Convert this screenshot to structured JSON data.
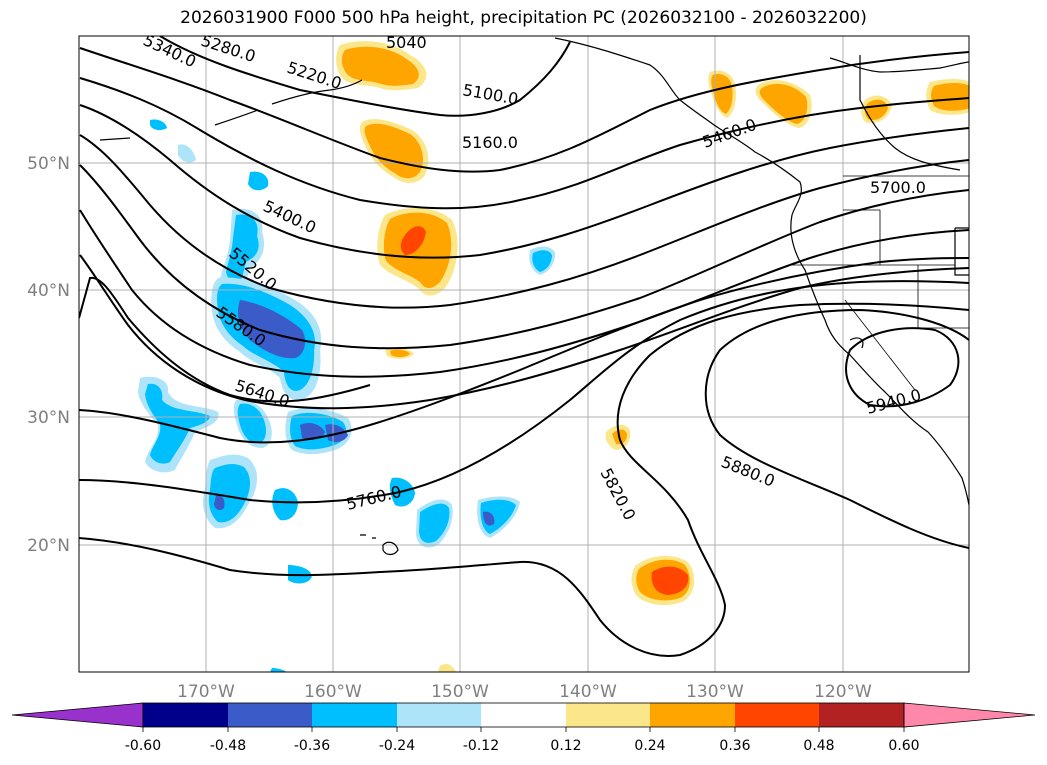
{
  "title": "2026031900 F000 500 hPa height, precipitation PC (2026032100 - 2026032200)",
  "map": {
    "lon_ticks": [
      "170°W",
      "160°W",
      "150°W",
      "140°W",
      "130°W",
      "120°W"
    ],
    "lat_ticks": [
      "50°N",
      "40°N",
      "30°N",
      "20°N"
    ],
    "contour_labels": [
      "5040",
      "5100.0",
      "5160.0",
      "5220.0",
      "5280.0",
      "5340.0",
      "5400.0",
      "5460.0",
      "5520.0",
      "5580.0",
      "5640.0",
      "5700.0",
      "5760.0",
      "5820.0",
      "5880.0",
      "5940.0"
    ]
  },
  "colorbar": {
    "ticks": [
      "-0.60",
      "-0.48",
      "-0.36",
      "-0.24",
      "-0.12",
      "0.12",
      "0.24",
      "0.36",
      "0.48",
      "0.60"
    ],
    "colors": [
      "#9932cc",
      "#00008b",
      "#3a5bc8",
      "#00bfff",
      "#aee4fa",
      "#ffffff",
      "#fce68a",
      "#ffa500",
      "#ff4500",
      "#b22222",
      "#ff88aa"
    ]
  }
}
